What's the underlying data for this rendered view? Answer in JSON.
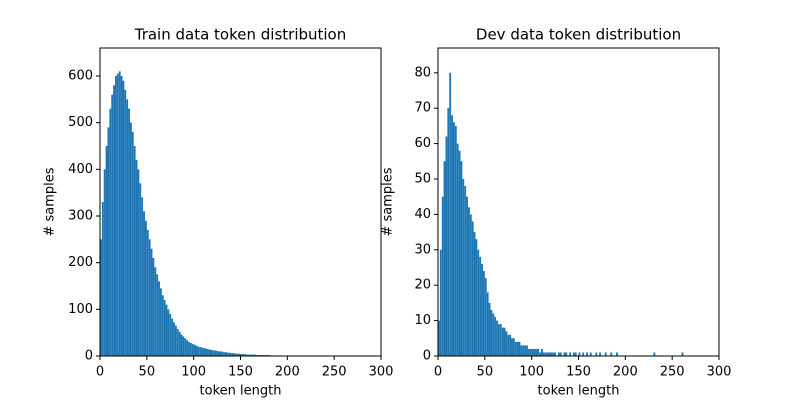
{
  "chart_data": [
    {
      "type": "histogram",
      "title": "Train data token distribution",
      "xlabel": "token length",
      "ylabel": "# samples",
      "color": "#1f77b4",
      "xlim": [
        0,
        300
      ],
      "ylim": [
        0,
        660
      ],
      "xticks": [
        0,
        50,
        100,
        150,
        200,
        250,
        300
      ],
      "yticks": [
        0,
        100,
        200,
        300,
        400,
        500,
        600
      ],
      "bins": [
        0,
        2,
        4,
        6,
        8,
        10,
        12,
        14,
        16,
        18,
        20,
        22,
        24,
        26,
        28,
        30,
        32,
        34,
        36,
        38,
        40,
        42,
        44,
        46,
        48,
        50,
        52,
        54,
        56,
        58,
        60,
        62,
        64,
        66,
        68,
        70,
        72,
        74,
        76,
        78,
        80,
        82,
        84,
        86,
        88,
        90,
        92,
        94,
        96,
        98,
        100,
        102,
        104,
        106,
        108,
        110,
        112,
        114,
        116,
        118,
        120,
        122,
        124,
        126,
        128,
        130,
        132,
        134,
        136,
        138,
        140,
        142,
        144,
        146,
        148,
        150,
        152,
        154,
        156,
        158,
        160,
        162,
        164,
        166,
        168,
        170,
        172,
        174,
        176,
        178,
        180,
        182,
        184,
        186,
        188,
        190,
        192,
        194,
        196,
        198,
        200,
        202,
        204,
        206,
        208,
        210,
        212,
        214,
        216,
        218,
        220,
        222,
        224,
        226,
        228,
        230,
        232,
        234,
        236,
        238,
        240,
        242,
        244,
        246,
        248,
        250,
        252,
        254,
        256,
        258,
        260,
        262,
        264,
        266,
        268,
        270,
        272,
        274,
        276,
        278,
        280,
        282,
        284,
        286,
        288,
        290,
        292,
        294,
        296,
        298,
        300
      ],
      "counts": [
        250,
        330,
        400,
        450,
        490,
        530,
        560,
        580,
        600,
        605,
        610,
        600,
        590,
        570,
        550,
        530,
        500,
        480,
        450,
        420,
        400,
        370,
        340,
        310,
        290,
        270,
        250,
        230,
        210,
        190,
        175,
        160,
        145,
        130,
        120,
        110,
        100,
        90,
        80,
        72,
        65,
        58,
        52,
        46,
        42,
        38,
        34,
        30,
        28,
        26,
        24,
        22,
        20,
        19,
        18,
        17,
        16,
        15,
        14,
        13,
        12,
        12,
        11,
        10,
        10,
        9,
        8,
        8,
        7,
        7,
        6,
        6,
        5,
        5,
        5,
        4,
        4,
        4,
        3,
        3,
        3,
        3,
        3,
        2,
        2,
        2,
        2,
        2,
        2,
        2,
        2,
        1,
        1,
        1,
        1,
        1,
        1,
        1,
        1,
        1,
        1,
        0,
        1,
        1,
        0,
        1,
        0,
        1,
        1,
        0,
        1,
        0,
        0,
        1,
        1,
        0,
        1,
        0,
        1,
        0,
        0,
        1,
        0,
        1,
        0,
        1,
        0,
        0,
        1,
        0,
        1,
        0,
        0,
        1,
        0,
        0,
        1,
        0,
        1,
        0,
        0,
        1,
        0,
        0,
        1,
        0,
        0,
        1,
        0,
        0
      ]
    },
    {
      "type": "histogram",
      "title": "Dev data token distribution",
      "xlabel": "token length",
      "ylabel": "# samples",
      "color": "#1f77b4",
      "xlim": [
        0,
        300
      ],
      "ylim": [
        0,
        87
      ],
      "xticks": [
        0,
        50,
        100,
        150,
        200,
        250,
        300
      ],
      "yticks": [
        0,
        10,
        20,
        30,
        40,
        50,
        60,
        70,
        80
      ],
      "bins": [
        0,
        2,
        4,
        6,
        8,
        10,
        12,
        14,
        16,
        18,
        20,
        22,
        24,
        26,
        28,
        30,
        32,
        34,
        36,
        38,
        40,
        42,
        44,
        46,
        48,
        50,
        52,
        54,
        56,
        58,
        60,
        62,
        64,
        66,
        68,
        70,
        72,
        74,
        76,
        78,
        80,
        82,
        84,
        86,
        88,
        90,
        92,
        94,
        96,
        98,
        100,
        102,
        104,
        106,
        108,
        110,
        112,
        114,
        116,
        118,
        120,
        122,
        124,
        126,
        128,
        130,
        132,
        134,
        136,
        138,
        140,
        142,
        144,
        146,
        148,
        150,
        152,
        154,
        156,
        158,
        160,
        162,
        164,
        166,
        168,
        170,
        172,
        174,
        176,
        178,
        180,
        182,
        184,
        186,
        188,
        190,
        192,
        194,
        196,
        198,
        200,
        202,
        204,
        206,
        208,
        210,
        212,
        214,
        216,
        218,
        220,
        222,
        224,
        226,
        228,
        230,
        232,
        234,
        236,
        238,
        240,
        242,
        244,
        246,
        248,
        250,
        252,
        254,
        256,
        258,
        260,
        262,
        264,
        266,
        268,
        270,
        272,
        274,
        276,
        278,
        280,
        282,
        284,
        286,
        288,
        290,
        292,
        294,
        296,
        298,
        300
      ],
      "counts": [
        10,
        30,
        45,
        55,
        62,
        70,
        80,
        68,
        66,
        65,
        60,
        58,
        55,
        50,
        48,
        45,
        42,
        40,
        38,
        35,
        33,
        30,
        28,
        26,
        24,
        22,
        18,
        15,
        13,
        12,
        11,
        10,
        9,
        9,
        8,
        8,
        7,
        6,
        6,
        5,
        5,
        4,
        4,
        4,
        3,
        3,
        3,
        3,
        2,
        2,
        2,
        2,
        2,
        2,
        1,
        2,
        1,
        1,
        1,
        1,
        1,
        1,
        1,
        0,
        1,
        1,
        0,
        1,
        1,
        0,
        1,
        0,
        1,
        1,
        0,
        1,
        0,
        1,
        0,
        1,
        0,
        1,
        0,
        0,
        1,
        0,
        1,
        0,
        0,
        1,
        0,
        0,
        1,
        0,
        0,
        1,
        0,
        0,
        0,
        0,
        0,
        0,
        0,
        0,
        0,
        0,
        0,
        0,
        0,
        0,
        0,
        0,
        0,
        0,
        0,
        1,
        0,
        0,
        0,
        0,
        0,
        0,
        0,
        0,
        0,
        0,
        0,
        0,
        0,
        0,
        1,
        0,
        0,
        0,
        0,
        0,
        0,
        0,
        0,
        0,
        0,
        0,
        0,
        0,
        0,
        0,
        0,
        0,
        0,
        0
      ]
    }
  ]
}
